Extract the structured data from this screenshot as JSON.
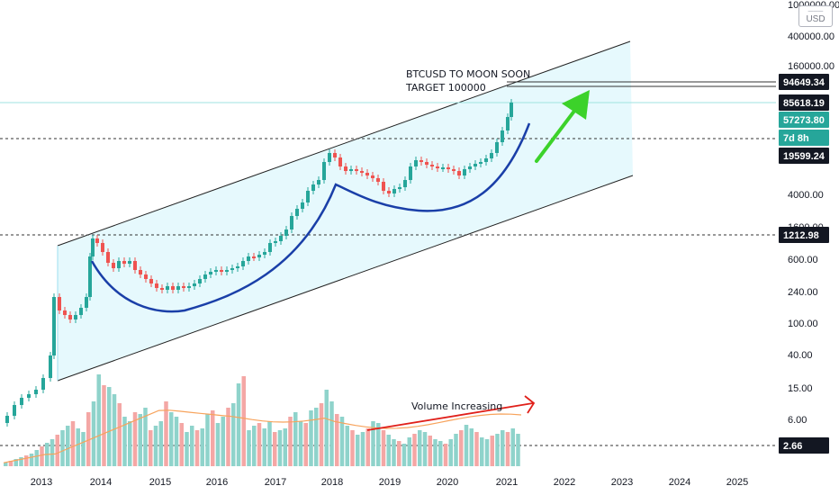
{
  "chart_data": {
    "type": "candlestick",
    "symbol": "BTCUSD",
    "currency": "USD",
    "scale": "log",
    "x_ticks": [
      "2013",
      "2014",
      "2015",
      "2016",
      "2017",
      "2018",
      "2019",
      "2020",
      "2021",
      "2022",
      "2023",
      "2024",
      "2025"
    ],
    "y_ticks": [
      "1000000.00",
      "400000.00",
      "160000.00",
      "4000.00",
      "1600.00",
      "600.00",
      "240.00",
      "100.00",
      "40.00",
      "15.00",
      "6.00"
    ],
    "price_labels": [
      {
        "text": "94649.34",
        "style": "dark"
      },
      {
        "text": "85618.19",
        "style": "dark"
      },
      {
        "text": "57273.80",
        "style": "green"
      },
      {
        "text": "7d 8h",
        "style": "green"
      },
      {
        "text": "19599.24",
        "style": "dark"
      },
      {
        "text": "1212.98",
        "style": "dark"
      },
      {
        "text": "2.66",
        "style": "dark"
      }
    ],
    "annotations": {
      "title_line1": "BTCUSD TO MOON SOON",
      "title_line2": "TARGET 100000",
      "volume_note": "Volume Increasing"
    },
    "colors": {
      "up": "#26a69a",
      "down": "#ef5350",
      "vol_up": "#8fd3cb",
      "vol_down": "#f4a7a5",
      "channel_fill": "#e6f9fd",
      "cup": "#1a3fa8",
      "arrow_green": "#3cd22a",
      "arrow_red": "#e0201a",
      "ma": "#f7a35c"
    }
  }
}
